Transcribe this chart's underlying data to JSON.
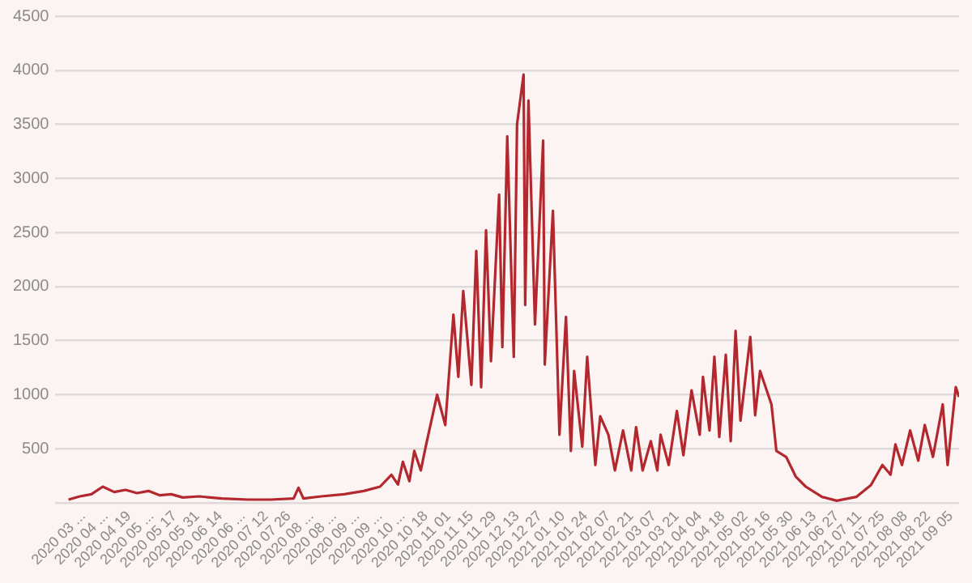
{
  "chart_data": {
    "type": "line",
    "x": [
      "2020-03-13",
      "2020-03-20",
      "2020-03-27",
      "2020-04-03",
      "2020-04-10",
      "2020-04-17",
      "2020-04-24",
      "2020-05-01",
      "2020-05-08",
      "2020-05-15",
      "2020-05-22",
      "2020-06-01",
      "2020-06-15",
      "2020-07-01",
      "2020-07-15",
      "2020-07-29",
      "2020-08-01",
      "2020-08-04",
      "2020-08-15",
      "2020-08-29",
      "2020-09-10",
      "2020-09-20",
      "2020-09-27",
      "2020-10-01",
      "2020-10-04",
      "2020-10-08",
      "2020-10-11",
      "2020-10-15",
      "2020-10-18",
      "2020-10-25",
      "2020-10-30",
      "2020-11-04",
      "2020-11-07",
      "2020-11-10",
      "2020-11-15",
      "2020-11-18",
      "2020-11-21",
      "2020-11-24",
      "2020-11-27",
      "2020-12-02",
      "2020-12-04",
      "2020-12-07",
      "2020-12-11",
      "2020-12-13",
      "2020-12-17",
      "2020-12-18",
      "2020-12-20",
      "2020-12-24",
      "2020-12-29",
      "2020-12-30",
      "2021-01-04",
      "2021-01-08",
      "2021-01-12",
      "2021-01-15",
      "2021-01-17",
      "2021-01-22",
      "2021-01-25",
      "2021-01-30",
      "2021-02-02",
      "2021-02-07",
      "2021-02-11",
      "2021-02-16",
      "2021-02-21",
      "2021-02-24",
      "2021-02-28",
      "2021-03-05",
      "2021-03-09",
      "2021-03-11",
      "2021-03-16",
      "2021-03-21",
      "2021-03-25",
      "2021-03-30",
      "2021-04-04",
      "2021-04-06",
      "2021-04-10",
      "2021-04-13",
      "2021-04-16",
      "2021-04-20",
      "2021-04-23",
      "2021-04-26",
      "2021-04-29",
      "2021-05-05",
      "2021-05-08",
      "2021-05-11",
      "2021-05-18",
      "2021-05-21",
      "2021-05-27",
      "2021-06-02",
      "2021-06-08",
      "2021-06-18",
      "2021-06-27",
      "2021-07-09",
      "2021-07-18",
      "2021-07-25",
      "2021-07-30",
      "2021-08-02",
      "2021-08-06",
      "2021-08-11",
      "2021-08-16",
      "2021-08-20",
      "2021-08-25",
      "2021-08-31",
      "2021-09-03",
      "2021-09-08",
      "2021-09-10"
    ],
    "series": [
      {
        "color": "#b3282f",
        "values": [
          30,
          60,
          80,
          150,
          100,
          120,
          90,
          110,
          70,
          80,
          50,
          60,
          40,
          30,
          30,
          40,
          140,
          40,
          60,
          80,
          110,
          150,
          260,
          170,
          380,
          200,
          480,
          300,
          520,
          1000,
          720,
          1740,
          1165,
          1960,
          1090,
          2330,
          1070,
          2520,
          1310,
          2850,
          1440,
          3390,
          1350,
          3500,
          3960,
          1830,
          3720,
          1650,
          3350,
          1280,
          2700,
          630,
          1720,
          480,
          1220,
          520,
          1350,
          350,
          800,
          630,
          300,
          670,
          300,
          700,
          300,
          570,
          300,
          630,
          350,
          850,
          440,
          1040,
          630,
          1165,
          670,
          1350,
          610,
          1370,
          570,
          1590,
          760,
          1535,
          810,
          1220,
          910,
          480,
          425,
          240,
          150,
          55,
          20,
          55,
          165,
          350,
          260,
          540,
          350,
          670,
          390,
          720,
          425,
          910,
          350,
          1070,
          980
        ]
      }
    ],
    "xlim": [
      "2020-03-05",
      "2021-09-10"
    ],
    "xticks": [
      {
        "value": "2020-03-22",
        "label": "2020 03 ..."
      },
      {
        "value": "2020-04-05",
        "label": "2020 04 ..."
      },
      {
        "value": "2020-04-19",
        "label": "2020 04 19"
      },
      {
        "value": "2020-05-03",
        "label": "2020 05 ..."
      },
      {
        "value": "2020-05-17",
        "label": "2020 05 17"
      },
      {
        "value": "2020-05-31",
        "label": "2020 05 31"
      },
      {
        "value": "2020-06-14",
        "label": "2020 06 14"
      },
      {
        "value": "2020-06-28",
        "label": "2020 06 ..."
      },
      {
        "value": "2020-07-12",
        "label": "2020 07 12"
      },
      {
        "value": "2020-07-26",
        "label": "2020 07 26"
      },
      {
        "value": "2020-08-09",
        "label": "2020 08 ..."
      },
      {
        "value": "2020-08-23",
        "label": "2020 08 ..."
      },
      {
        "value": "2020-09-06",
        "label": "2020 09 ..."
      },
      {
        "value": "2020-09-20",
        "label": "2020 09 ..."
      },
      {
        "value": "2020-10-04",
        "label": "2020 10 ..."
      },
      {
        "value": "2020-10-18",
        "label": "2020 10 18"
      },
      {
        "value": "2020-11-01",
        "label": "2020 11 01"
      },
      {
        "value": "2020-11-15",
        "label": "2020 11 15"
      },
      {
        "value": "2020-11-29",
        "label": "2020 11 29"
      },
      {
        "value": "2020-12-13",
        "label": "2020 12 13"
      },
      {
        "value": "2020-12-27",
        "label": "2020 12 27"
      },
      {
        "value": "2021-01-10",
        "label": "2021 01 10"
      },
      {
        "value": "2021-01-24",
        "label": "2021 01 24"
      },
      {
        "value": "2021-02-07",
        "label": "2021 02 07"
      },
      {
        "value": "2021-02-21",
        "label": "2021 02 21"
      },
      {
        "value": "2021-03-07",
        "label": "2021 03 07"
      },
      {
        "value": "2021-03-21",
        "label": "2021 03 21"
      },
      {
        "value": "2021-04-04",
        "label": "2021 04 04"
      },
      {
        "value": "2021-04-18",
        "label": "2021 04 18"
      },
      {
        "value": "2021-05-02",
        "label": "2021 05 02"
      },
      {
        "value": "2021-05-16",
        "label": "2021 05 16"
      },
      {
        "value": "2021-05-30",
        "label": "2021 05 30"
      },
      {
        "value": "2021-06-13",
        "label": "2021 06 13"
      },
      {
        "value": "2021-06-27",
        "label": "2021 06 27"
      },
      {
        "value": "2021-07-11",
        "label": "2021 07 11"
      },
      {
        "value": "2021-07-25",
        "label": "2021 07 25"
      },
      {
        "value": "2021-08-08",
        "label": "2021 08 08"
      },
      {
        "value": "2021-08-22",
        "label": "2021 08 22"
      },
      {
        "value": "2021-09-05",
        "label": "2021 09 05"
      }
    ],
    "ylim": [
      0,
      4500
    ],
    "yticks": [
      {
        "value": 0,
        "label": null
      },
      500,
      1000,
      1500,
      2000,
      2500,
      3000,
      3500,
      4000,
      4500
    ],
    "grid": "y",
    "marker": "none",
    "line_style": "solid"
  }
}
